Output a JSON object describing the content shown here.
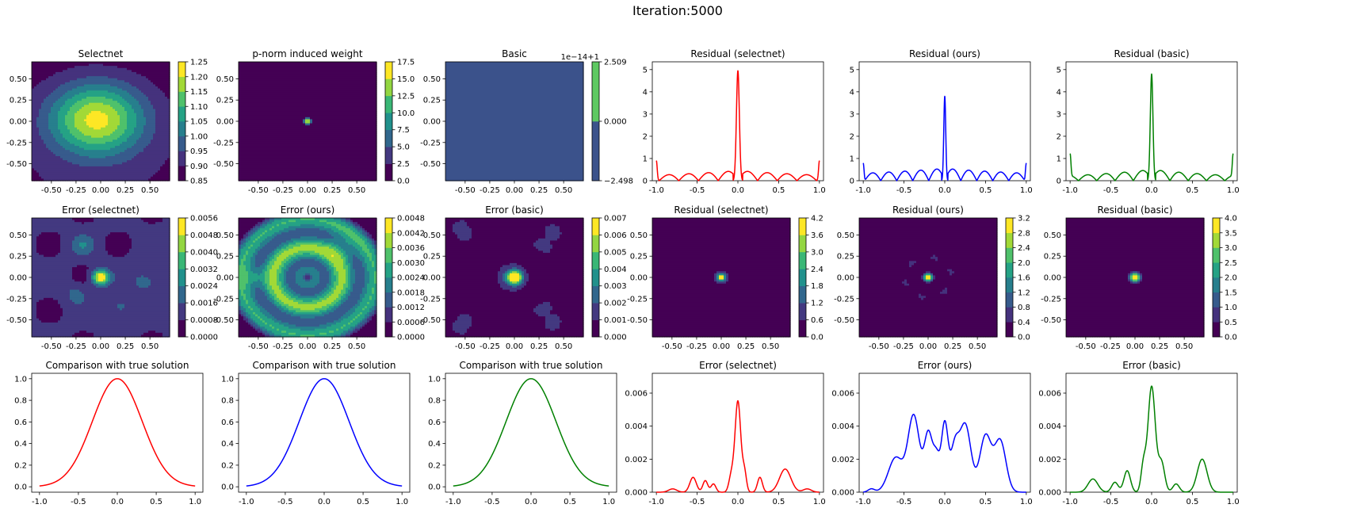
{
  "suptitle": "Iteration:5000",
  "colors": {
    "viridis": [
      "#440154",
      "#472d7b",
      "#3b528b",
      "#2c728e",
      "#21918c",
      "#28ae80",
      "#5ec962",
      "#addc30",
      "#fde725"
    ],
    "selectnet": "#ff0000",
    "ours": "#0000ff",
    "basic": "#008000"
  },
  "chart_data": [
    {
      "id": "p00",
      "type": "heatmap",
      "title": "Selectnet",
      "cmap": "viridis",
      "field": "selectnet_solution",
      "xlim": [
        -0.7,
        0.7
      ],
      "ylim": [
        -0.7,
        0.7
      ],
      "xticks": [
        "-0.50",
        "-0.25",
        "0.00",
        "0.25",
        "0.50"
      ],
      "yticks": [
        "-0.50",
        "-0.25",
        "0.00",
        "0.25",
        "0.50"
      ],
      "colorbar": {
        "min": 0.85,
        "max": 1.25,
        "levels": [
          0.85,
          0.9,
          0.95,
          1.0,
          1.05,
          1.1,
          1.15,
          1.2,
          1.25
        ],
        "ticks": [
          "0.85",
          "0.90",
          "0.95",
          "1.00",
          "1.05",
          "1.10",
          "1.15",
          "1.20",
          "1.25"
        ]
      }
    },
    {
      "id": "p01",
      "type": "heatmap",
      "title": "p-norm induced weight",
      "cmap": "viridis",
      "field": "point_spike",
      "xlim": [
        -0.7,
        0.7
      ],
      "ylim": [
        -0.7,
        0.7
      ],
      "xticks": [
        "-0.50",
        "-0.25",
        "0.00",
        "0.25",
        "0.50"
      ],
      "yticks": [
        "-0.50",
        "-0.25",
        "0.00",
        "0.25",
        "0.50"
      ],
      "colorbar": {
        "min": 0,
        "max": 17.5,
        "levels": [
          0,
          2.5,
          5,
          7.5,
          10,
          12.5,
          15,
          17.5
        ],
        "ticks": [
          "0.0",
          "2.5",
          "5.0",
          "7.5",
          "10.0",
          "12.5",
          "15.0",
          "17.5"
        ]
      }
    },
    {
      "id": "p02",
      "type": "heatmap",
      "title": "Basic",
      "cmap": "viridis",
      "field": "constant",
      "xlim": [
        -0.7,
        0.7
      ],
      "ylim": [
        -0.7,
        0.7
      ],
      "xticks": [
        "-0.50",
        "-0.25",
        "0.00",
        "0.25",
        "0.50"
      ],
      "yticks": [
        "-0.50",
        "-0.25",
        "0.00",
        "0.25",
        "0.50"
      ],
      "colorbar": {
        "min": -2.498,
        "max": 2.509,
        "offset": "1e−14+1",
        "levels": [
          -2.498,
          0.0,
          2.509
        ],
        "level_colors": [
          "#3b528b",
          "#5ec962"
        ],
        "ticks": [
          "−2.498",
          "0.000",
          "2.509"
        ]
      }
    },
    {
      "id": "p03",
      "type": "line",
      "title": "Residual  (selectnet)",
      "color": "#ff0000",
      "curve": "residual_selectnet",
      "xlim": [
        -1.05,
        1.05
      ],
      "ylim": [
        0,
        5.35
      ],
      "xticks": [
        "-1.0",
        "-0.5",
        "0.0",
        "0.5",
        "1.0"
      ],
      "yticks": [
        "0",
        "1",
        "2",
        "3",
        "4",
        "5"
      ]
    },
    {
      "id": "p04",
      "type": "line",
      "title": "Residual (ours)",
      "color": "#0000ff",
      "curve": "residual_ours",
      "xlim": [
        -1.05,
        1.05
      ],
      "ylim": [
        0,
        5.35
      ],
      "xticks": [
        "-1.0",
        "-0.5",
        "0.0",
        "0.5",
        "1.0"
      ],
      "yticks": [
        "0",
        "1",
        "2",
        "3",
        "4",
        "5"
      ]
    },
    {
      "id": "p05",
      "type": "line",
      "title": "Residual (basic)",
      "color": "#008000",
      "curve": "residual_basic",
      "xlim": [
        -1.05,
        1.05
      ],
      "ylim": [
        0,
        5.35
      ],
      "xticks": [
        "-1.0",
        "-0.5",
        "0.0",
        "0.5",
        "1.0"
      ],
      "yticks": [
        "0",
        "1",
        "2",
        "3",
        "4",
        "5"
      ]
    },
    {
      "id": "p10",
      "type": "heatmap",
      "title": "Error (selectnet)",
      "cmap": "viridis",
      "field": "error_selectnet",
      "xlim": [
        -0.7,
        0.7
      ],
      "ylim": [
        -0.7,
        0.7
      ],
      "xticks": [
        "-0.50",
        "-0.25",
        "0.00",
        "0.25",
        "0.50"
      ],
      "yticks": [
        "-0.50",
        "-0.25",
        "0.00",
        "0.25",
        "0.50"
      ],
      "colorbar": {
        "min": 0,
        "max": 0.0056,
        "levels": [
          0,
          0.0008,
          0.0016,
          0.0024,
          0.0032,
          0.004,
          0.0048,
          0.0056
        ],
        "ticks": [
          "0.0000",
          "0.0008",
          "0.0016",
          "0.0024",
          "0.0032",
          "0.0040",
          "0.0048",
          "0.0056"
        ]
      }
    },
    {
      "id": "p11",
      "type": "heatmap",
      "title": "Error (ours)",
      "cmap": "viridis",
      "field": "error_ours",
      "xlim": [
        -0.7,
        0.7
      ],
      "ylim": [
        -0.7,
        0.7
      ],
      "xticks": [
        "-0.50",
        "-0.25",
        "0.00",
        "0.25",
        "0.50"
      ],
      "yticks": [
        "-0.50",
        "-0.25",
        "0.00",
        "0.25",
        "0.50"
      ],
      "colorbar": {
        "min": 0,
        "max": 0.0048,
        "levels": [
          0,
          0.0006,
          0.0012,
          0.0018,
          0.0024,
          0.003,
          0.0036,
          0.0042,
          0.0048
        ],
        "ticks": [
          "0.0000",
          "0.0006",
          "0.0012",
          "0.0018",
          "0.0024",
          "0.0030",
          "0.0036",
          "0.0042",
          "0.0048"
        ]
      }
    },
    {
      "id": "p12",
      "type": "heatmap",
      "title": "Error (basic)",
      "cmap": "viridis",
      "field": "error_basic",
      "xlim": [
        -0.7,
        0.7
      ],
      "ylim": [
        -0.7,
        0.7
      ],
      "xticks": [
        "-0.50",
        "-0.25",
        "0.00",
        "0.25",
        "0.50"
      ],
      "yticks": [
        "-0.50",
        "-0.25",
        "0.00",
        "0.25",
        "0.50"
      ],
      "colorbar": {
        "min": 0,
        "max": 0.007,
        "levels": [
          0,
          0.001,
          0.002,
          0.003,
          0.004,
          0.005,
          0.006,
          0.007
        ],
        "ticks": [
          "0.000",
          "0.001",
          "0.002",
          "0.003",
          "0.004",
          "0.005",
          "0.006",
          "0.007"
        ]
      }
    },
    {
      "id": "p13",
      "type": "heatmap",
      "title": "Residual (selectnet)",
      "cmap": "viridis",
      "field": "residual2d_selectnet",
      "xlim": [
        -0.7,
        0.7
      ],
      "ylim": [
        -0.7,
        0.7
      ],
      "xticks": [
        "-0.50",
        "-0.25",
        "0.00",
        "0.25",
        "0.50"
      ],
      "yticks": [
        "-0.50",
        "-0.25",
        "0.00",
        "0.25",
        "0.50"
      ],
      "colorbar": {
        "min": 0,
        "max": 4.2,
        "levels": [
          0,
          0.6,
          1.2,
          1.8,
          2.4,
          3.0,
          3.6,
          4.2
        ],
        "ticks": [
          "0.0",
          "0.6",
          "1.2",
          "1.8",
          "2.4",
          "3.0",
          "3.6",
          "4.2"
        ]
      }
    },
    {
      "id": "p14",
      "type": "heatmap",
      "title": "Residual (ours)",
      "cmap": "viridis",
      "field": "residual2d_ours",
      "xlim": [
        -0.7,
        0.7
      ],
      "ylim": [
        -0.7,
        0.7
      ],
      "xticks": [
        "-0.50",
        "-0.25",
        "0.00",
        "0.25",
        "0.50"
      ],
      "yticks": [
        "-0.50",
        "-0.25",
        "0.00",
        "0.25",
        "0.50"
      ],
      "colorbar": {
        "min": 0,
        "max": 3.2,
        "levels": [
          0,
          0.4,
          0.8,
          1.2,
          1.6,
          2.0,
          2.4,
          2.8,
          3.2
        ],
        "ticks": [
          "0.0",
          "0.4",
          "0.8",
          "1.2",
          "1.6",
          "2.0",
          "2.4",
          "2.8",
          "3.2"
        ]
      }
    },
    {
      "id": "p15",
      "type": "heatmap",
      "title": "Residual (basic)",
      "cmap": "viridis",
      "field": "residual2d_basic",
      "xlim": [
        -0.7,
        0.7
      ],
      "ylim": [
        -0.7,
        0.7
      ],
      "xticks": [
        "-0.50",
        "-0.25",
        "0.00",
        "0.25",
        "0.50"
      ],
      "yticks": [
        "-0.50",
        "-0.25",
        "0.00",
        "0.25",
        "0.50"
      ],
      "colorbar": {
        "min": 0,
        "max": 4.0,
        "levels": [
          0,
          0.5,
          1.0,
          1.5,
          2.0,
          2.5,
          3.0,
          3.5,
          4.0
        ],
        "ticks": [
          "0.0",
          "0.5",
          "1.0",
          "1.5",
          "2.0",
          "2.5",
          "3.0",
          "3.5",
          "4.0"
        ]
      }
    },
    {
      "id": "p20",
      "type": "line",
      "title": "Comparison with true solution",
      "color": "#ff0000",
      "curve": "gaussian",
      "xlim": [
        -1.1,
        1.1
      ],
      "ylim": [
        -0.05,
        1.05
      ],
      "xticks": [
        "-1.0",
        "-0.5",
        "0.0",
        "0.5",
        "1.0"
      ],
      "yticks": [
        "0.0",
        "0.2",
        "0.4",
        "0.6",
        "0.8",
        "1.0"
      ]
    },
    {
      "id": "p21",
      "type": "line",
      "title": "Comparison with true solution",
      "color": "#0000ff",
      "curve": "gaussian",
      "xlim": [
        -1.1,
        1.1
      ],
      "ylim": [
        -0.05,
        1.05
      ],
      "xticks": [
        "-1.0",
        "-0.5",
        "0.0",
        "0.5",
        "1.0"
      ],
      "yticks": [
        "0.0",
        "0.2",
        "0.4",
        "0.6",
        "0.8",
        "1.0"
      ]
    },
    {
      "id": "p22",
      "type": "line",
      "title": "Comparison with true solution",
      "color": "#008000",
      "curve": "gaussian",
      "xlim": [
        -1.1,
        1.1
      ],
      "ylim": [
        -0.05,
        1.05
      ],
      "xticks": [
        "-1.0",
        "-0.5",
        "0.0",
        "0.5",
        "1.0"
      ],
      "yticks": [
        "0.0",
        "0.2",
        "0.4",
        "0.6",
        "0.8",
        "1.0"
      ]
    },
    {
      "id": "p23",
      "type": "line",
      "title": "Error (selectnet)",
      "color": "#ff0000",
      "curve": "error_selectnet",
      "xlim": [
        -1.05,
        1.05
      ],
      "ylim": [
        0,
        0.0072
      ],
      "xticks": [
        "-1.0",
        "-0.5",
        "0.0",
        "0.5",
        "1.0"
      ],
      "yticks": [
        "0.000",
        "0.002",
        "0.004",
        "0.006"
      ]
    },
    {
      "id": "p24",
      "type": "line",
      "title": "Error (ours)",
      "color": "#0000ff",
      "curve": "error_ours",
      "xlim": [
        -1.05,
        1.05
      ],
      "ylim": [
        0,
        0.0072
      ],
      "xticks": [
        "-1.0",
        "-0.5",
        "0.0",
        "0.5",
        "1.0"
      ],
      "yticks": [
        "0.000",
        "0.002",
        "0.004",
        "0.006"
      ]
    },
    {
      "id": "p25",
      "type": "line",
      "title": "Error (basic)",
      "color": "#008000",
      "curve": "error_basic",
      "xlim": [
        -1.05,
        1.05
      ],
      "ylim": [
        0,
        0.0072
      ],
      "xticks": [
        "-1.0",
        "-0.5",
        "0.0",
        "0.5",
        "1.0"
      ],
      "yticks": [
        "0.000",
        "0.002",
        "0.004",
        "0.006"
      ]
    }
  ]
}
